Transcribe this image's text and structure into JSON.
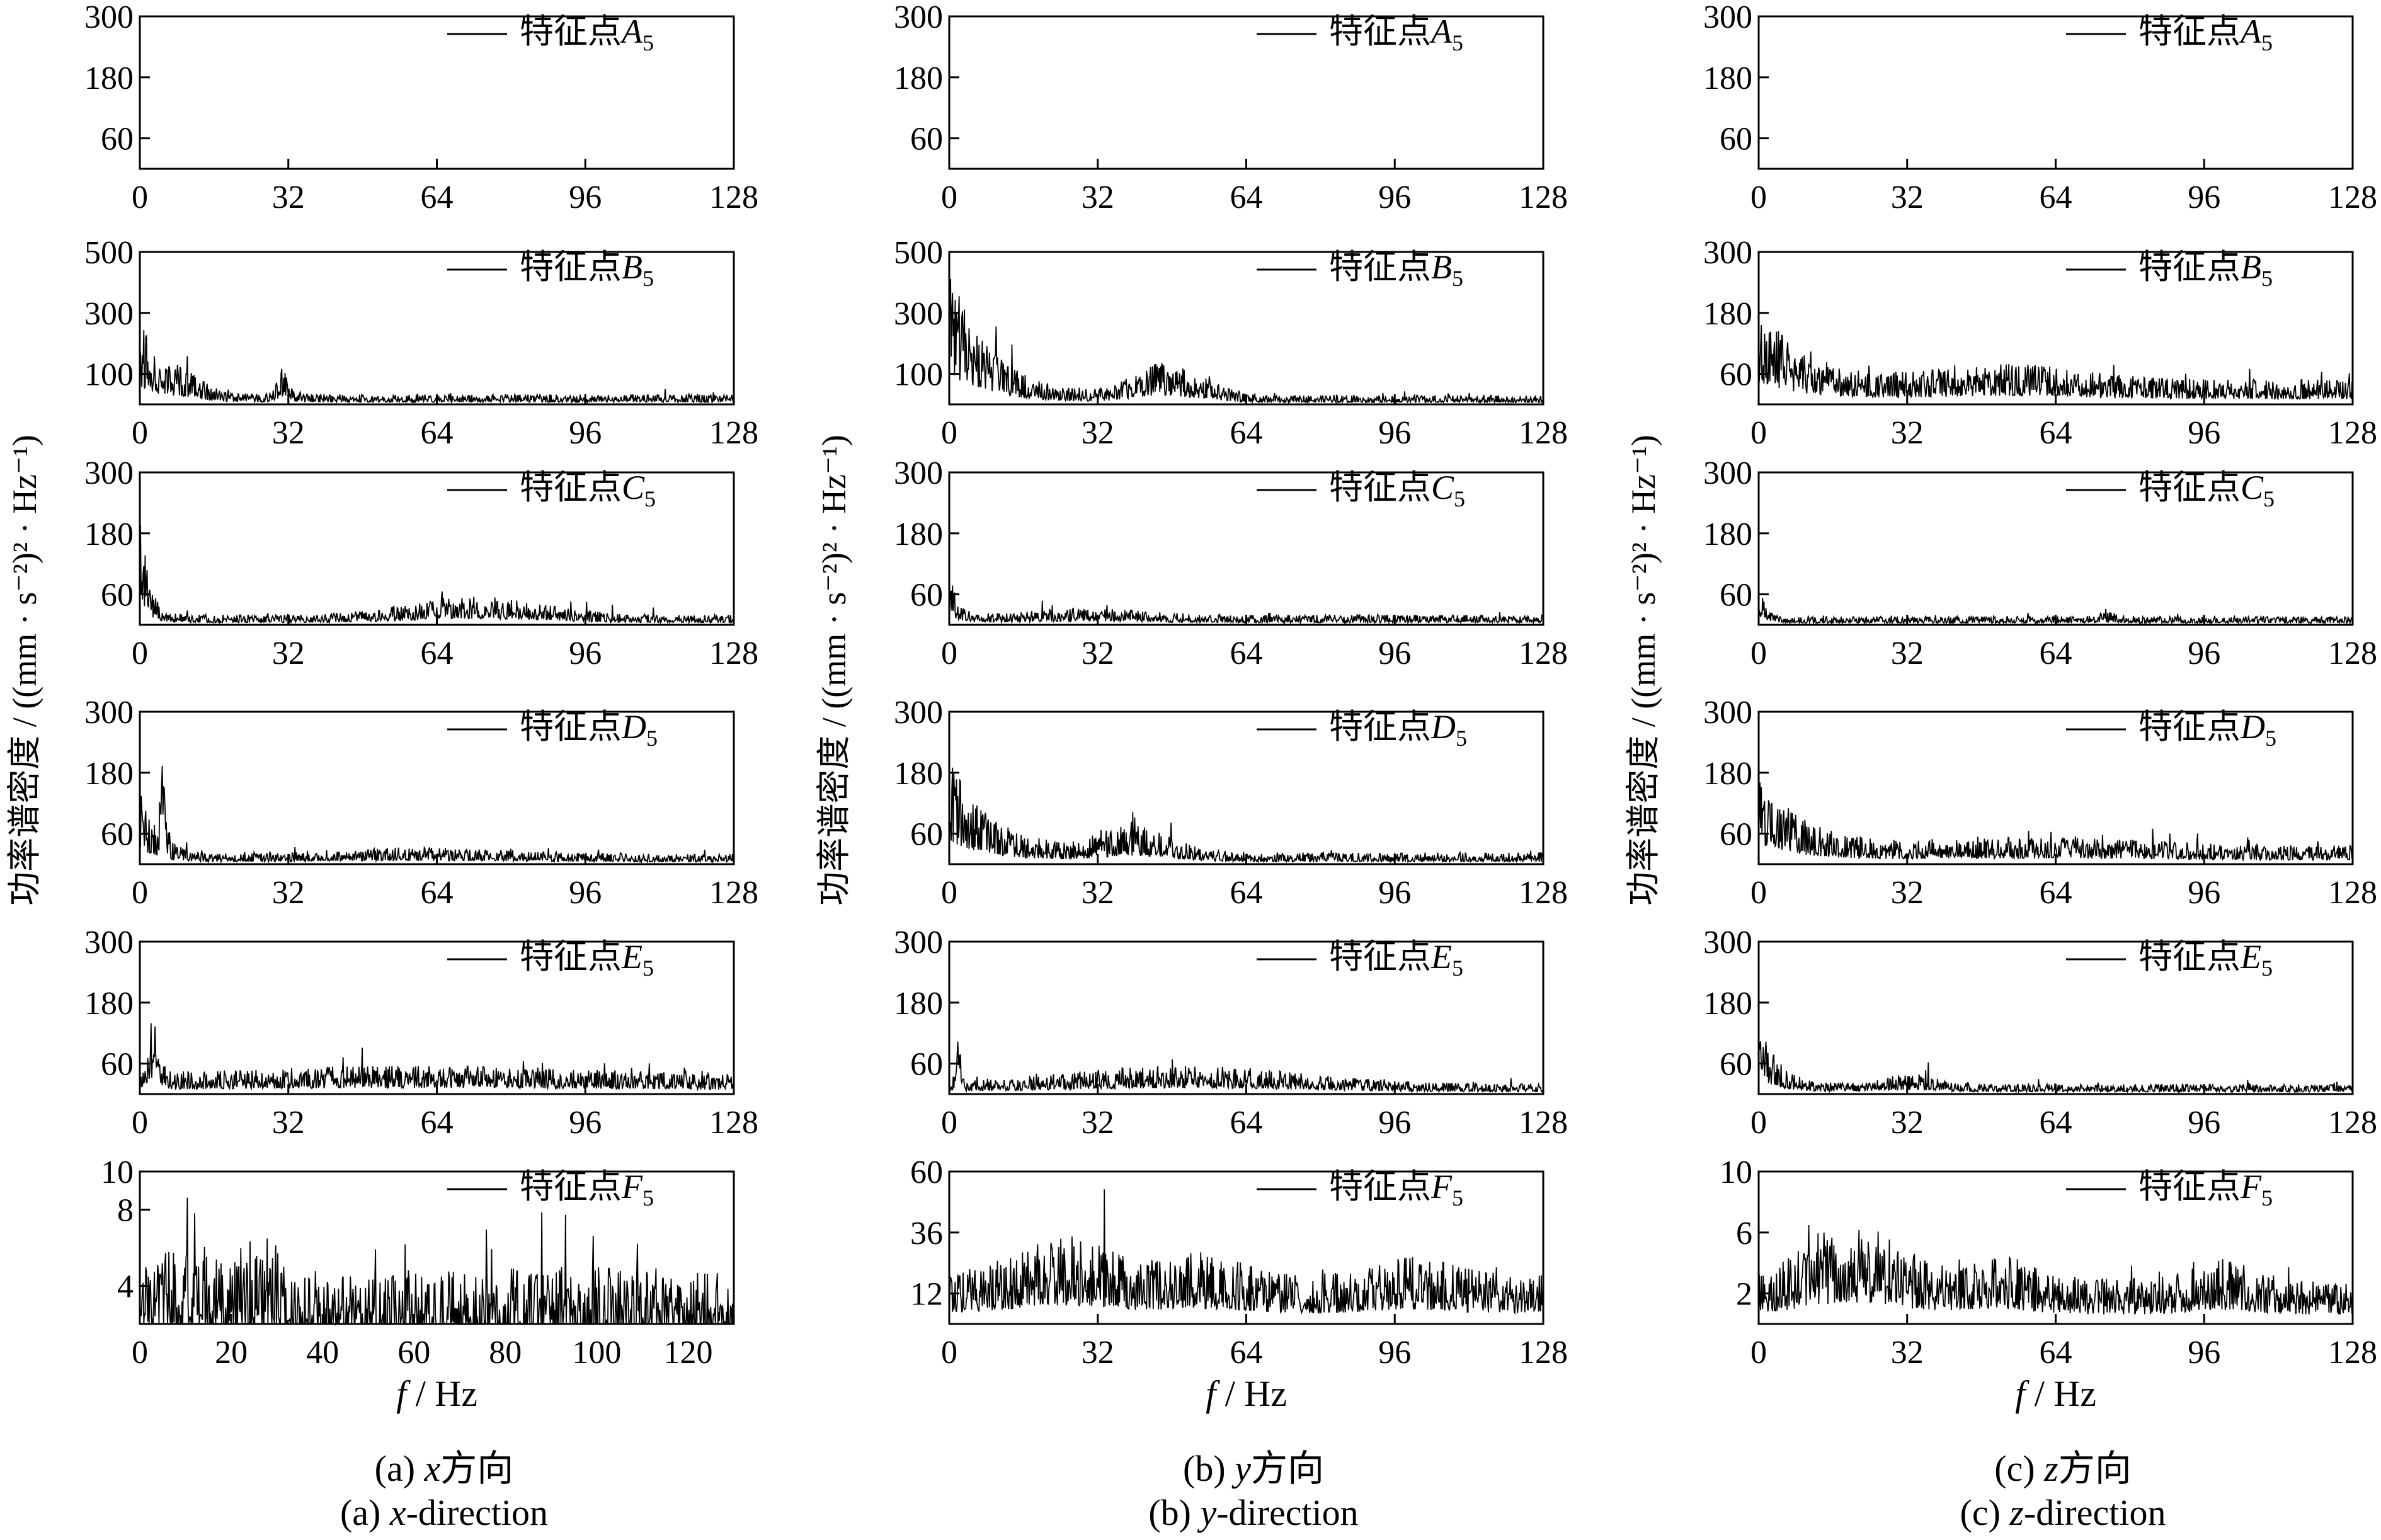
{
  "figure": {
    "y_axis_label": "功率谱密度 / ((mm · s⁻²)² · Hz⁻¹)",
    "x_axis_label_var": "f",
    "x_axis_label_unit": " / Hz",
    "columns": [
      {
        "cn_prefix": "(a)  ",
        "var": "x",
        "cn_suffix": "方向",
        "en_prefix": "(a)  ",
        "en_suffix": "-direction"
      },
      {
        "cn_prefix": "(b)  ",
        "var": "y",
        "cn_suffix": "方向",
        "en_prefix": "(b)  ",
        "en_suffix": "-direction"
      },
      {
        "cn_prefix": "(c)  ",
        "var": "z",
        "cn_suffix": "方向",
        "en_prefix": "(c)  ",
        "en_suffix": "-direction"
      }
    ]
  },
  "chart_data": [
    {
      "type": "line",
      "column": "x",
      "series": [
        {
          "name": "特征点A5",
          "label_prefix": "特征点",
          "label_var": "A",
          "label_sub": "5",
          "profile": "none"
        }
      ],
      "xlim": [
        0,
        128
      ],
      "x_ticks": [
        "0",
        "32",
        "64",
        "96",
        "128"
      ],
      "ylim": [
        0,
        300
      ],
      "y_ticks": [
        "60",
        "180",
        "300"
      ],
      "grid": false,
      "legend": "top-right"
    },
    {
      "type": "line",
      "column": "x",
      "series": [
        {
          "name": "特征点B5",
          "label_prefix": "特征点",
          "label_var": "B",
          "label_sub": "5",
          "profile": "xB"
        }
      ],
      "xlim": [
        0,
        128
      ],
      "x_ticks": [
        "0",
        "32",
        "64",
        "96",
        "128"
      ],
      "ylim": [
        0,
        500
      ],
      "y_ticks": [
        "100",
        "300",
        "500"
      ],
      "grid": false,
      "legend": "top-right"
    },
    {
      "type": "line",
      "column": "x",
      "series": [
        {
          "name": "特征点C5",
          "label_prefix": "特征点",
          "label_var": "C",
          "label_sub": "5",
          "profile": "xC"
        }
      ],
      "xlim": [
        0,
        128
      ],
      "x_ticks": [
        "0",
        "32",
        "64",
        "96",
        "128"
      ],
      "ylim": [
        0,
        300
      ],
      "y_ticks": [
        "60",
        "180",
        "300"
      ],
      "grid": false,
      "legend": "top-right"
    },
    {
      "type": "line",
      "column": "x",
      "series": [
        {
          "name": "特征点D5",
          "label_prefix": "特征点",
          "label_var": "D",
          "label_sub": "5",
          "profile": "xD"
        }
      ],
      "xlim": [
        0,
        128
      ],
      "x_ticks": [
        "0",
        "32",
        "64",
        "96",
        "128"
      ],
      "ylim": [
        0,
        300
      ],
      "y_ticks": [
        "60",
        "180",
        "300"
      ],
      "grid": false,
      "legend": "top-right"
    },
    {
      "type": "line",
      "column": "x",
      "series": [
        {
          "name": "特征点E5",
          "label_prefix": "特征点",
          "label_var": "E",
          "label_sub": "5",
          "profile": "xE"
        }
      ],
      "xlim": [
        0,
        128
      ],
      "x_ticks": [
        "0",
        "32",
        "64",
        "96",
        "128"
      ],
      "ylim": [
        0,
        300
      ],
      "y_ticks": [
        "60",
        "180",
        "300"
      ],
      "grid": false,
      "legend": "top-right"
    },
    {
      "type": "line",
      "column": "x",
      "series": [
        {
          "name": "特征点F5",
          "label_prefix": "特征点",
          "label_var": "F",
          "label_sub": "5",
          "profile": "xF"
        }
      ],
      "xlim": [
        0,
        130
      ],
      "x_ticks": [
        "0",
        "20",
        "40",
        "60",
        "80",
        "100",
        "120"
      ],
      "ylim": [
        2,
        10
      ],
      "y_ticks": [
        "4",
        "8",
        "10"
      ],
      "grid": false,
      "legend": "top-right"
    },
    {
      "type": "line",
      "column": "y",
      "series": [
        {
          "name": "特征点A5",
          "label_prefix": "特征点",
          "label_var": "A",
          "label_sub": "5",
          "profile": "none"
        }
      ],
      "xlim": [
        0,
        128
      ],
      "x_ticks": [
        "0",
        "32",
        "64",
        "96",
        "128"
      ],
      "ylim": [
        0,
        300
      ],
      "y_ticks": [
        "60",
        "180",
        "300"
      ],
      "grid": false,
      "legend": "top-right"
    },
    {
      "type": "line",
      "column": "y",
      "series": [
        {
          "name": "特征点B5",
          "label_prefix": "特征点",
          "label_var": "B",
          "label_sub": "5",
          "profile": "yB"
        }
      ],
      "xlim": [
        0,
        128
      ],
      "x_ticks": [
        "0",
        "32",
        "64",
        "96",
        "128"
      ],
      "ylim": [
        0,
        500
      ],
      "y_ticks": [
        "100",
        "300",
        "500"
      ],
      "grid": false,
      "legend": "top-right"
    },
    {
      "type": "line",
      "column": "y",
      "series": [
        {
          "name": "特征点C5",
          "label_prefix": "特征点",
          "label_var": "C",
          "label_sub": "5",
          "profile": "yC"
        }
      ],
      "xlim": [
        0,
        128
      ],
      "x_ticks": [
        "0",
        "32",
        "64",
        "96",
        "128"
      ],
      "ylim": [
        0,
        300
      ],
      "y_ticks": [
        "60",
        "180",
        "300"
      ],
      "grid": false,
      "legend": "top-right"
    },
    {
      "type": "line",
      "column": "y",
      "series": [
        {
          "name": "特征点D5",
          "label_prefix": "特征点",
          "label_var": "D",
          "label_sub": "5",
          "profile": "yD"
        }
      ],
      "xlim": [
        0,
        128
      ],
      "x_ticks": [
        "0",
        "32",
        "64",
        "96",
        "128"
      ],
      "ylim": [
        0,
        300
      ],
      "y_ticks": [
        "60",
        "180",
        "300"
      ],
      "grid": false,
      "legend": "top-right"
    },
    {
      "type": "line",
      "column": "y",
      "series": [
        {
          "name": "特征点E5",
          "label_prefix": "特征点",
          "label_var": "E",
          "label_sub": "5",
          "profile": "yE"
        }
      ],
      "xlim": [
        0,
        128
      ],
      "x_ticks": [
        "0",
        "32",
        "64",
        "96",
        "128"
      ],
      "ylim": [
        0,
        300
      ],
      "y_ticks": [
        "60",
        "180",
        "300"
      ],
      "grid": false,
      "legend": "top-right"
    },
    {
      "type": "line",
      "column": "y",
      "series": [
        {
          "name": "特征点F5",
          "label_prefix": "特征点",
          "label_var": "F",
          "label_sub": "5",
          "profile": "yF"
        }
      ],
      "xlim": [
        0,
        128
      ],
      "x_ticks": [
        "0",
        "32",
        "64",
        "96",
        "128"
      ],
      "ylim": [
        0,
        60
      ],
      "y_ticks": [
        "12",
        "36",
        "60"
      ],
      "grid": false,
      "legend": "top-right"
    },
    {
      "type": "line",
      "column": "z",
      "series": [
        {
          "name": "特征点A5",
          "label_prefix": "特征点",
          "label_var": "A",
          "label_sub": "5",
          "profile": "none"
        }
      ],
      "xlim": [
        0,
        128
      ],
      "x_ticks": [
        "0",
        "32",
        "64",
        "96",
        "128"
      ],
      "ylim": [
        0,
        300
      ],
      "y_ticks": [
        "60",
        "180",
        "300"
      ],
      "grid": false,
      "legend": "top-right"
    },
    {
      "type": "line",
      "column": "z",
      "series": [
        {
          "name": "特征点B5",
          "label_prefix": "特征点",
          "label_var": "B",
          "label_sub": "5",
          "profile": "zB"
        }
      ],
      "xlim": [
        0,
        128
      ],
      "x_ticks": [
        "0",
        "32",
        "64",
        "96",
        "128"
      ],
      "ylim": [
        0,
        300
      ],
      "y_ticks": [
        "60",
        "180",
        "300"
      ],
      "grid": false,
      "legend": "top-right"
    },
    {
      "type": "line",
      "column": "z",
      "series": [
        {
          "name": "特征点C5",
          "label_prefix": "特征点",
          "label_var": "C",
          "label_sub": "5",
          "profile": "zC"
        }
      ],
      "xlim": [
        0,
        128
      ],
      "x_ticks": [
        "0",
        "32",
        "64",
        "96",
        "128"
      ],
      "ylim": [
        0,
        300
      ],
      "y_ticks": [
        "60",
        "180",
        "300"
      ],
      "grid": false,
      "legend": "top-right"
    },
    {
      "type": "line",
      "column": "z",
      "series": [
        {
          "name": "特征点D5",
          "label_prefix": "特征点",
          "label_var": "D",
          "label_sub": "5",
          "profile": "zD"
        }
      ],
      "xlim": [
        0,
        128
      ],
      "x_ticks": [
        "0",
        "32",
        "64",
        "96",
        "128"
      ],
      "ylim": [
        0,
        300
      ],
      "y_ticks": [
        "60",
        "180",
        "300"
      ],
      "grid": false,
      "legend": "top-right"
    },
    {
      "type": "line",
      "column": "z",
      "series": [
        {
          "name": "特征点E5",
          "label_prefix": "特征点",
          "label_var": "E",
          "label_sub": "5",
          "profile": "zE"
        }
      ],
      "xlim": [
        0,
        128
      ],
      "x_ticks": [
        "0",
        "32",
        "64",
        "96",
        "128"
      ],
      "ylim": [
        0,
        300
      ],
      "y_ticks": [
        "60",
        "180",
        "300"
      ],
      "grid": false,
      "legend": "top-right"
    },
    {
      "type": "line",
      "column": "z",
      "series": [
        {
          "name": "特征点F5",
          "label_prefix": "特征点",
          "label_var": "F",
          "label_sub": "5",
          "profile": "zF"
        }
      ],
      "xlim": [
        0,
        128
      ],
      "x_ticks": [
        "0",
        "32",
        "64",
        "96",
        "128"
      ],
      "ylim": [
        0,
        10
      ],
      "y_ticks": [
        "2",
        "6",
        "10"
      ],
      "grid": false,
      "legend": "top-right"
    }
  ]
}
